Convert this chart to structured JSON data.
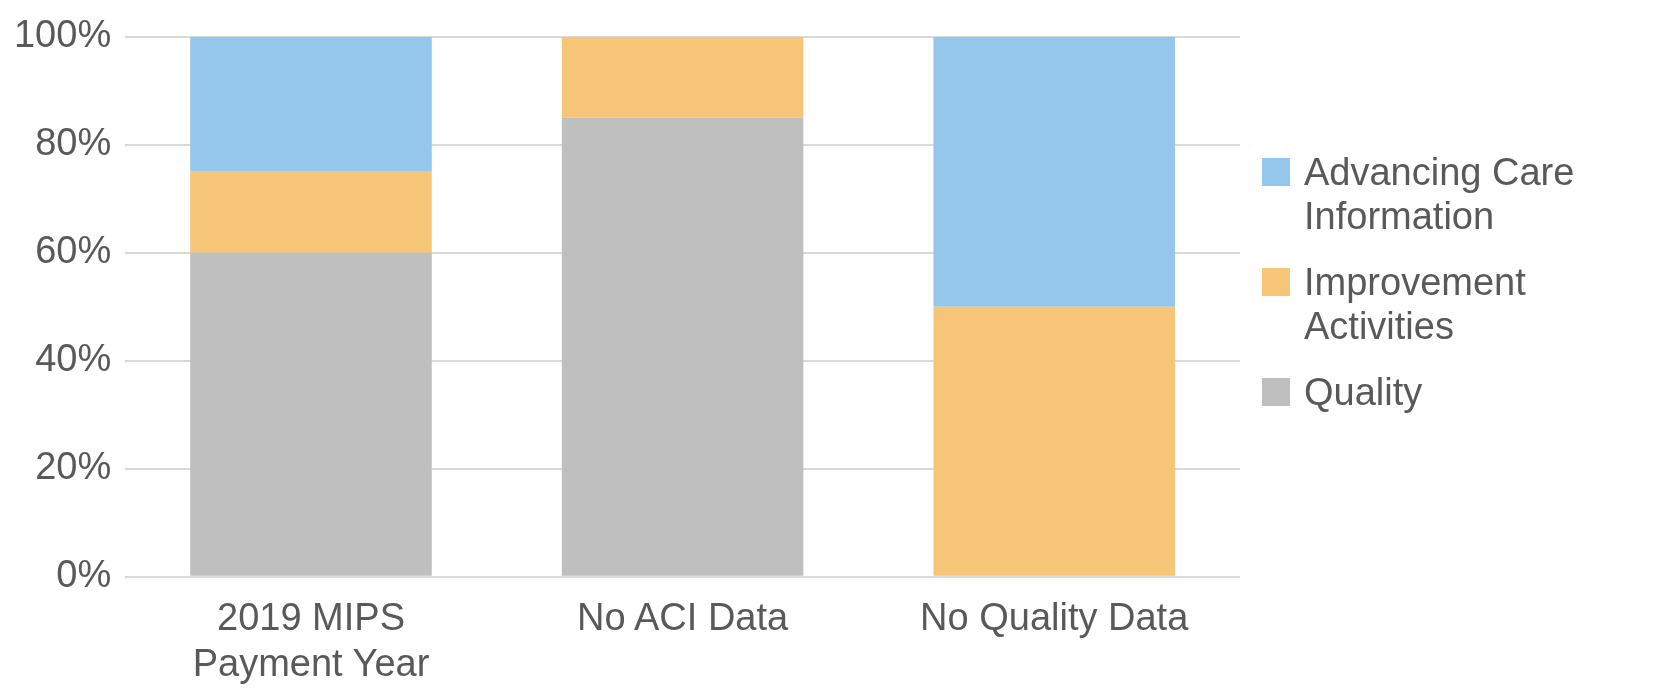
{
  "chart_data": {
    "type": "bar",
    "stacked": true,
    "categories": [
      "2019 MIPS Payment Year",
      "No ACI Data",
      "No Quality Data"
    ],
    "series": [
      {
        "name": "Quality",
        "color": "#bfbfbf",
        "values": [
          60,
          85,
          0
        ]
      },
      {
        "name": "Improvement Activities",
        "color": "#f6c577",
        "values": [
          15,
          15,
          50
        ]
      },
      {
        "name": "Advancing Care Information",
        "color": "#95c6ec",
        "values": [
          25,
          0,
          50
        ]
      }
    ],
    "ylim": [
      0,
      100
    ],
    "yticks": [
      {
        "value": 0,
        "label": "0%"
      },
      {
        "value": 20,
        "label": "20%"
      },
      {
        "value": 40,
        "label": "40%"
      },
      {
        "value": 60,
        "label": "60%"
      },
      {
        "value": 80,
        "label": "80%"
      },
      {
        "value": 100,
        "label": "100%"
      }
    ],
    "grid": "y",
    "legend": "right"
  }
}
